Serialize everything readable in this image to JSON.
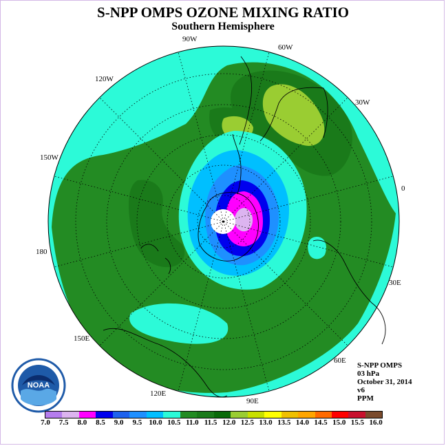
{
  "title": "S-NPP OMPS OZONE MIXING RATIO",
  "subtitle": "Southern Hemisphere",
  "meridian_labels": {
    "w90": "90W",
    "w60": "60W",
    "w30": "30W",
    "w120": "120W",
    "w150": "150W",
    "e0": "0",
    "d180": "180",
    "e30": "30E",
    "e150": "150E",
    "e60": "60E",
    "e120": "120E",
    "e90": "90E"
  },
  "info": {
    "instrument": "S-NPP OMPS",
    "level": "03 hPa",
    "date": "October 31, 2014",
    "version": "v6",
    "units": "PPM"
  },
  "logo_text": "NOAA",
  "colorbar": {
    "colors": [
      "#b57ded",
      "#dcb4f0",
      "#ff00ff",
      "#0000ee",
      "#1e62ee",
      "#1e90ff",
      "#00bfff",
      "#2cfad8",
      "#238b23",
      "#1a7a1a",
      "#0a6a0a",
      "#9acd32",
      "#c8e000",
      "#ffff00",
      "#f0c000",
      "#ffa500",
      "#ff6a00",
      "#ff0000",
      "#c8102e",
      "#7a4a2c"
    ],
    "ticks": [
      "7.0",
      "7.5",
      "8.0",
      "8.5",
      "9.0",
      "9.5",
      "10.0",
      "10.5",
      "11.0",
      "11.5",
      "12.0",
      "12.5",
      "13.0",
      "13.5",
      "14.0",
      "14.5",
      "15.0",
      "15.5",
      "16.0"
    ]
  },
  "map_colors": {
    "ocean_ring": "#2cfad8",
    "green_mid": "#238b23",
    "green_dark": "#1a7a1a",
    "lime": "#9acd32",
    "yellow": "#ffff00",
    "blue_light": "#00bfff",
    "blue_mid": "#1e90ff",
    "blue_dark": "#0000ee",
    "magenta": "#ff00ff",
    "lilac": "#dcb4f0"
  }
}
